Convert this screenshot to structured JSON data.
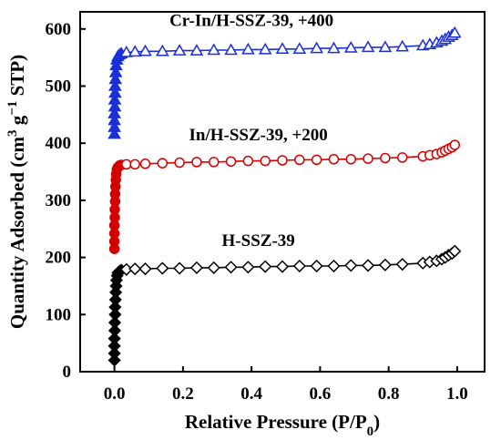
{
  "chart_data": {
    "type": "scatter",
    "xlabel": "Relative Pressure (P/P",
    "xlabel_sub": "0",
    "xlabel_close": ")",
    "ylabel": "Quantity Adsorbed (cm",
    "ylabel_sup1": "3",
    "ylabel_mid": " g",
    "ylabel_sup2": "−1",
    "ylabel_end": " STP)",
    "xlim": [
      -0.1,
      1.08
    ],
    "ylim": [
      0,
      630
    ],
    "x_ticks": [
      0.0,
      0.2,
      0.4,
      0.6,
      0.8,
      1.0
    ],
    "x_tick_labels": [
      "0.0",
      "0.2",
      "0.4",
      "0.6",
      "0.8",
      "1.0"
    ],
    "y_ticks": [
      0,
      100,
      200,
      300,
      400,
      500,
      600
    ],
    "y_tick_labels": [
      "0",
      "100",
      "200",
      "300",
      "400",
      "500",
      "600"
    ],
    "grid": false,
    "series": [
      {
        "name": "H-SSZ-39",
        "color": "#000000",
        "marker": "diamond",
        "label_pos": [
          0.42,
          220
        ],
        "points": [
          [
            0.0,
            20
          ],
          [
            0.0,
            32
          ],
          [
            0.0,
            45
          ],
          [
            0.0,
            58
          ],
          [
            0.001,
            72
          ],
          [
            0.001,
            86
          ],
          [
            0.002,
            100
          ],
          [
            0.002,
            113
          ],
          [
            0.003,
            126
          ],
          [
            0.004,
            139
          ],
          [
            0.005,
            150
          ],
          [
            0.006,
            160
          ],
          [
            0.008,
            168
          ],
          [
            0.01,
            173
          ],
          [
            0.015,
            176
          ],
          [
            0.02,
            178
          ],
          [
            0.035,
            179
          ],
          [
            0.06,
            180
          ],
          [
            0.09,
            180
          ],
          [
            0.14,
            181
          ],
          [
            0.19,
            181
          ],
          [
            0.24,
            182
          ],
          [
            0.29,
            182
          ],
          [
            0.34,
            183
          ],
          [
            0.39,
            183
          ],
          [
            0.44,
            184
          ],
          [
            0.49,
            184
          ],
          [
            0.54,
            185
          ],
          [
            0.59,
            185
          ],
          [
            0.64,
            185
          ],
          [
            0.69,
            186
          ],
          [
            0.74,
            186
          ],
          [
            0.79,
            187
          ],
          [
            0.84,
            188
          ],
          [
            0.9,
            190
          ],
          [
            0.92,
            192
          ],
          [
            0.94,
            194
          ],
          [
            0.955,
            197
          ],
          [
            0.965,
            200
          ],
          [
            0.975,
            204
          ],
          [
            0.985,
            207
          ],
          [
            0.993,
            211
          ]
        ]
      },
      {
        "name": "In/H-SSZ-39, +200",
        "color": "#d40000",
        "marker": "circle",
        "label_pos": [
          0.42,
          405
        ],
        "points": [
          [
            0.0,
            215
          ],
          [
            0.0,
            228
          ],
          [
            0.0,
            242
          ],
          [
            0.0,
            256
          ],
          [
            0.001,
            270
          ],
          [
            0.001,
            284
          ],
          [
            0.002,
            298
          ],
          [
            0.002,
            311
          ],
          [
            0.003,
            324
          ],
          [
            0.004,
            336
          ],
          [
            0.005,
            346
          ],
          [
            0.007,
            354
          ],
          [
            0.01,
            358
          ],
          [
            0.015,
            361
          ],
          [
            0.02,
            362
          ],
          [
            0.035,
            363
          ],
          [
            0.06,
            363
          ],
          [
            0.09,
            364
          ],
          [
            0.14,
            365
          ],
          [
            0.19,
            366
          ],
          [
            0.24,
            367
          ],
          [
            0.29,
            367
          ],
          [
            0.34,
            368
          ],
          [
            0.39,
            369
          ],
          [
            0.44,
            369
          ],
          [
            0.49,
            370
          ],
          [
            0.54,
            371
          ],
          [
            0.59,
            371
          ],
          [
            0.64,
            372
          ],
          [
            0.69,
            372
          ],
          [
            0.74,
            373
          ],
          [
            0.79,
            374
          ],
          [
            0.84,
            375
          ],
          [
            0.9,
            377
          ],
          [
            0.92,
            379
          ],
          [
            0.94,
            381
          ],
          [
            0.955,
            384
          ],
          [
            0.965,
            387
          ],
          [
            0.975,
            390
          ],
          [
            0.985,
            393
          ],
          [
            0.993,
            397
          ]
        ]
      },
      {
        "name": "Cr-In/H-SSZ-39, +400",
        "color": "#1a2fd6",
        "marker": "triangle",
        "label_pos": [
          0.4,
          605
        ],
        "points": [
          [
            0.0,
            416
          ],
          [
            0.0,
            428
          ],
          [
            0.0,
            440
          ],
          [
            0.0,
            452
          ],
          [
            0.001,
            464
          ],
          [
            0.001,
            476
          ],
          [
            0.002,
            488
          ],
          [
            0.002,
            500
          ],
          [
            0.003,
            512
          ],
          [
            0.004,
            524
          ],
          [
            0.005,
            536
          ],
          [
            0.007,
            546
          ],
          [
            0.01,
            552
          ],
          [
            0.015,
            555
          ],
          [
            0.02,
            557
          ],
          [
            0.035,
            559
          ],
          [
            0.06,
            560
          ],
          [
            0.09,
            561
          ],
          [
            0.14,
            561
          ],
          [
            0.19,
            562
          ],
          [
            0.24,
            562
          ],
          [
            0.29,
            563
          ],
          [
            0.34,
            563
          ],
          [
            0.39,
            564
          ],
          [
            0.44,
            564
          ],
          [
            0.49,
            565
          ],
          [
            0.54,
            565
          ],
          [
            0.59,
            566
          ],
          [
            0.64,
            566
          ],
          [
            0.69,
            567
          ],
          [
            0.74,
            568
          ],
          [
            0.79,
            568
          ],
          [
            0.84,
            569
          ],
          [
            0.9,
            571
          ],
          [
            0.92,
            573
          ],
          [
            0.94,
            576
          ],
          [
            0.955,
            579
          ],
          [
            0.965,
            582
          ],
          [
            0.975,
            586
          ],
          [
            0.985,
            589
          ],
          [
            0.993,
            593
          ]
        ]
      }
    ]
  }
}
